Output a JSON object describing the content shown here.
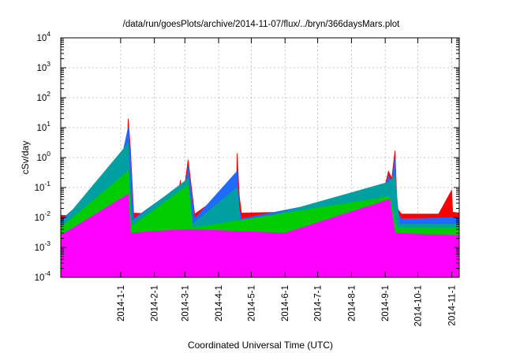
{
  "chart_data": {
    "type": "area",
    "title": "/data/run/goesPlots/archive/2014-11-07/flux/../bryn/366daysMars.plot",
    "xlabel": "Coordinated Universal Time (UTC)",
    "ylabel": "cSv/day",
    "yscale": "log",
    "ylim": [
      0.0001,
      10000
    ],
    "xlim": [
      "2013-11-07",
      "2014-11-08"
    ],
    "grid": true,
    "legend": "none",
    "y_ticks": [
      {
        "base": "10",
        "exp": "-4",
        "value": 0.0001
      },
      {
        "base": "10",
        "exp": "-3",
        "value": 0.001
      },
      {
        "base": "10",
        "exp": "-2",
        "value": 0.01
      },
      {
        "base": "10",
        "exp": "-1",
        "value": 0.1
      },
      {
        "base": "10",
        "exp": "0",
        "value": 1
      },
      {
        "base": "10",
        "exp": "1",
        "value": 10
      },
      {
        "base": "10",
        "exp": "2",
        "value": 100
      },
      {
        "base": "10",
        "exp": "3",
        "value": 1000
      },
      {
        "base": "10",
        "exp": "4",
        "value": 10000
      }
    ],
    "x_ticks": [
      {
        "label": "2014-1-1",
        "date": "2014-01-01"
      },
      {
        "label": "2014-2-1",
        "date": "2014-02-01"
      },
      {
        "label": "2014-3-1",
        "date": "2014-03-01"
      },
      {
        "label": "2014-4-1",
        "date": "2014-04-01"
      },
      {
        "label": "2014-5-1",
        "date": "2014-05-01"
      },
      {
        "label": "2014-6-1",
        "date": "2014-06-01"
      },
      {
        "label": "2014-7-1",
        "date": "2014-07-01"
      },
      {
        "label": "2014-8-1",
        "date": "2014-08-01"
      },
      {
        "label": "2014-9-1",
        "date": "2014-09-01"
      },
      {
        "label": "2014-10-1",
        "date": "2014-10-01"
      },
      {
        "label": "2014-11-1",
        "date": "2014-11-01"
      }
    ],
    "series": [
      {
        "color": "#ff0000",
        "values": [
          {
            "x": "2013-11-07",
            "y": 0.012
          },
          {
            "x": "2013-11-20",
            "y": 0.011
          },
          {
            "x": "2013-12-01",
            "y": 0.013
          },
          {
            "x": "2013-12-14",
            "y": 0.012
          },
          {
            "x": "2013-12-19",
            "y": 0.25
          },
          {
            "x": "2013-12-21",
            "y": 0.013
          },
          {
            "x": "2014-01-01",
            "y": 0.014
          },
          {
            "x": "2014-01-06",
            "y": 0.3
          },
          {
            "x": "2014-01-08",
            "y": 20
          },
          {
            "x": "2014-01-10",
            "y": 2
          },
          {
            "x": "2014-01-13",
            "y": 0.014
          },
          {
            "x": "2014-02-01",
            "y": 0.013
          },
          {
            "x": "2014-02-20",
            "y": 0.015
          },
          {
            "x": "2014-02-25",
            "y": 0.18
          },
          {
            "x": "2014-02-26",
            "y": 0.013
          },
          {
            "x": "2014-03-01",
            "y": 0.12
          },
          {
            "x": "2014-03-04",
            "y": 0.85
          },
          {
            "x": "2014-03-07",
            "y": 0.1
          },
          {
            "x": "2014-03-10",
            "y": 0.013
          },
          {
            "x": "2014-03-29",
            "y": 0.04
          },
          {
            "x": "2014-03-31",
            "y": 0.013
          },
          {
            "x": "2014-04-17",
            "y": 0.013
          },
          {
            "x": "2014-04-18",
            "y": 1.4
          },
          {
            "x": "2014-04-20",
            "y": 0.05
          },
          {
            "x": "2014-04-22",
            "y": 0.014
          },
          {
            "x": "2014-06-01",
            "y": 0.015
          },
          {
            "x": "2014-07-01",
            "y": 0.013
          },
          {
            "x": "2014-08-01",
            "y": 0.014
          },
          {
            "x": "2014-08-30",
            "y": 0.015
          },
          {
            "x": "2014-09-01",
            "y": 0.12
          },
          {
            "x": "2014-09-04",
            "y": 0.35
          },
          {
            "x": "2014-09-07",
            "y": 0.2
          },
          {
            "x": "2014-09-10",
            "y": 1.7
          },
          {
            "x": "2014-09-12",
            "y": 0.02
          },
          {
            "x": "2014-09-16",
            "y": 0.013
          },
          {
            "x": "2014-10-20",
            "y": 0.013
          },
          {
            "x": "2014-11-01",
            "y": 0.08
          },
          {
            "x": "2014-11-02",
            "y": 0.015
          },
          {
            "x": "2014-11-08",
            "y": 0.014
          }
        ]
      },
      {
        "color": "#1e6bff",
        "values": [
          {
            "x": "2013-11-07",
            "y": 0.008
          },
          {
            "x": "2013-12-19",
            "y": 0.18
          },
          {
            "x": "2013-12-21",
            "y": 0.009
          },
          {
            "x": "2014-01-08",
            "y": 10
          },
          {
            "x": "2014-01-10",
            "y": 1
          },
          {
            "x": "2014-01-13",
            "y": 0.009
          },
          {
            "x": "2014-02-25",
            "y": 0.12
          },
          {
            "x": "2014-02-26",
            "y": 0.009
          },
          {
            "x": "2014-03-04",
            "y": 0.5
          },
          {
            "x": "2014-03-07",
            "y": 0.06
          },
          {
            "x": "2014-03-10",
            "y": 0.009
          },
          {
            "x": "2014-04-18",
            "y": 0.35
          },
          {
            "x": "2014-04-20",
            "y": 0.02
          },
          {
            "x": "2014-04-22",
            "y": 0.009
          },
          {
            "x": "2014-09-01",
            "y": 0.08
          },
          {
            "x": "2014-09-04",
            "y": 0.25
          },
          {
            "x": "2014-09-07",
            "y": 0.15
          },
          {
            "x": "2014-09-10",
            "y": 0.9
          },
          {
            "x": "2014-09-12",
            "y": 0.014
          },
          {
            "x": "2014-09-16",
            "y": 0.009
          },
          {
            "x": "2014-11-08",
            "y": 0.01
          }
        ]
      },
      {
        "color": "#00a0a0",
        "values": [
          {
            "x": "2013-11-07",
            "y": 0.006
          },
          {
            "x": "2014-01-08",
            "y": 3
          },
          {
            "x": "2014-01-11",
            "y": 0.007
          },
          {
            "x": "2014-03-04",
            "y": 0.2
          },
          {
            "x": "2014-03-08",
            "y": 0.006
          },
          {
            "x": "2014-04-18",
            "y": 0.1
          },
          {
            "x": "2014-04-21",
            "y": 0.006
          },
          {
            "x": "2014-09-04",
            "y": 0.15
          },
          {
            "x": "2014-09-10",
            "y": 0.25
          },
          {
            "x": "2014-09-14",
            "y": 0.006
          },
          {
            "x": "2014-11-08",
            "y": 0.006
          }
        ]
      },
      {
        "color": "#00cc00",
        "values": [
          {
            "x": "2013-11-07",
            "y": 0.0045
          },
          {
            "x": "2014-01-08",
            "y": 0.35
          },
          {
            "x": "2014-01-11",
            "y": 0.005
          },
          {
            "x": "2014-03-04",
            "y": 0.12
          },
          {
            "x": "2014-03-08",
            "y": 0.0045
          },
          {
            "x": "2014-09-05",
            "y": 0.05
          },
          {
            "x": "2014-09-12",
            "y": 0.0045
          },
          {
            "x": "2014-11-08",
            "y": 0.0045
          }
        ]
      },
      {
        "color": "#ff00ff",
        "values": [
          {
            "x": "2013-11-07",
            "y": 0.0025
          },
          {
            "x": "2014-01-08",
            "y": 0.06
          },
          {
            "x": "2014-01-10",
            "y": 0.003
          },
          {
            "x": "2014-02-05",
            "y": 0.0035
          },
          {
            "x": "2014-03-05",
            "y": 0.004
          },
          {
            "x": "2014-06-01",
            "y": 0.003
          },
          {
            "x": "2014-09-05",
            "y": 0.04
          },
          {
            "x": "2014-09-10",
            "y": 0.003
          },
          {
            "x": "2014-11-08",
            "y": 0.0025
          }
        ]
      }
    ]
  }
}
